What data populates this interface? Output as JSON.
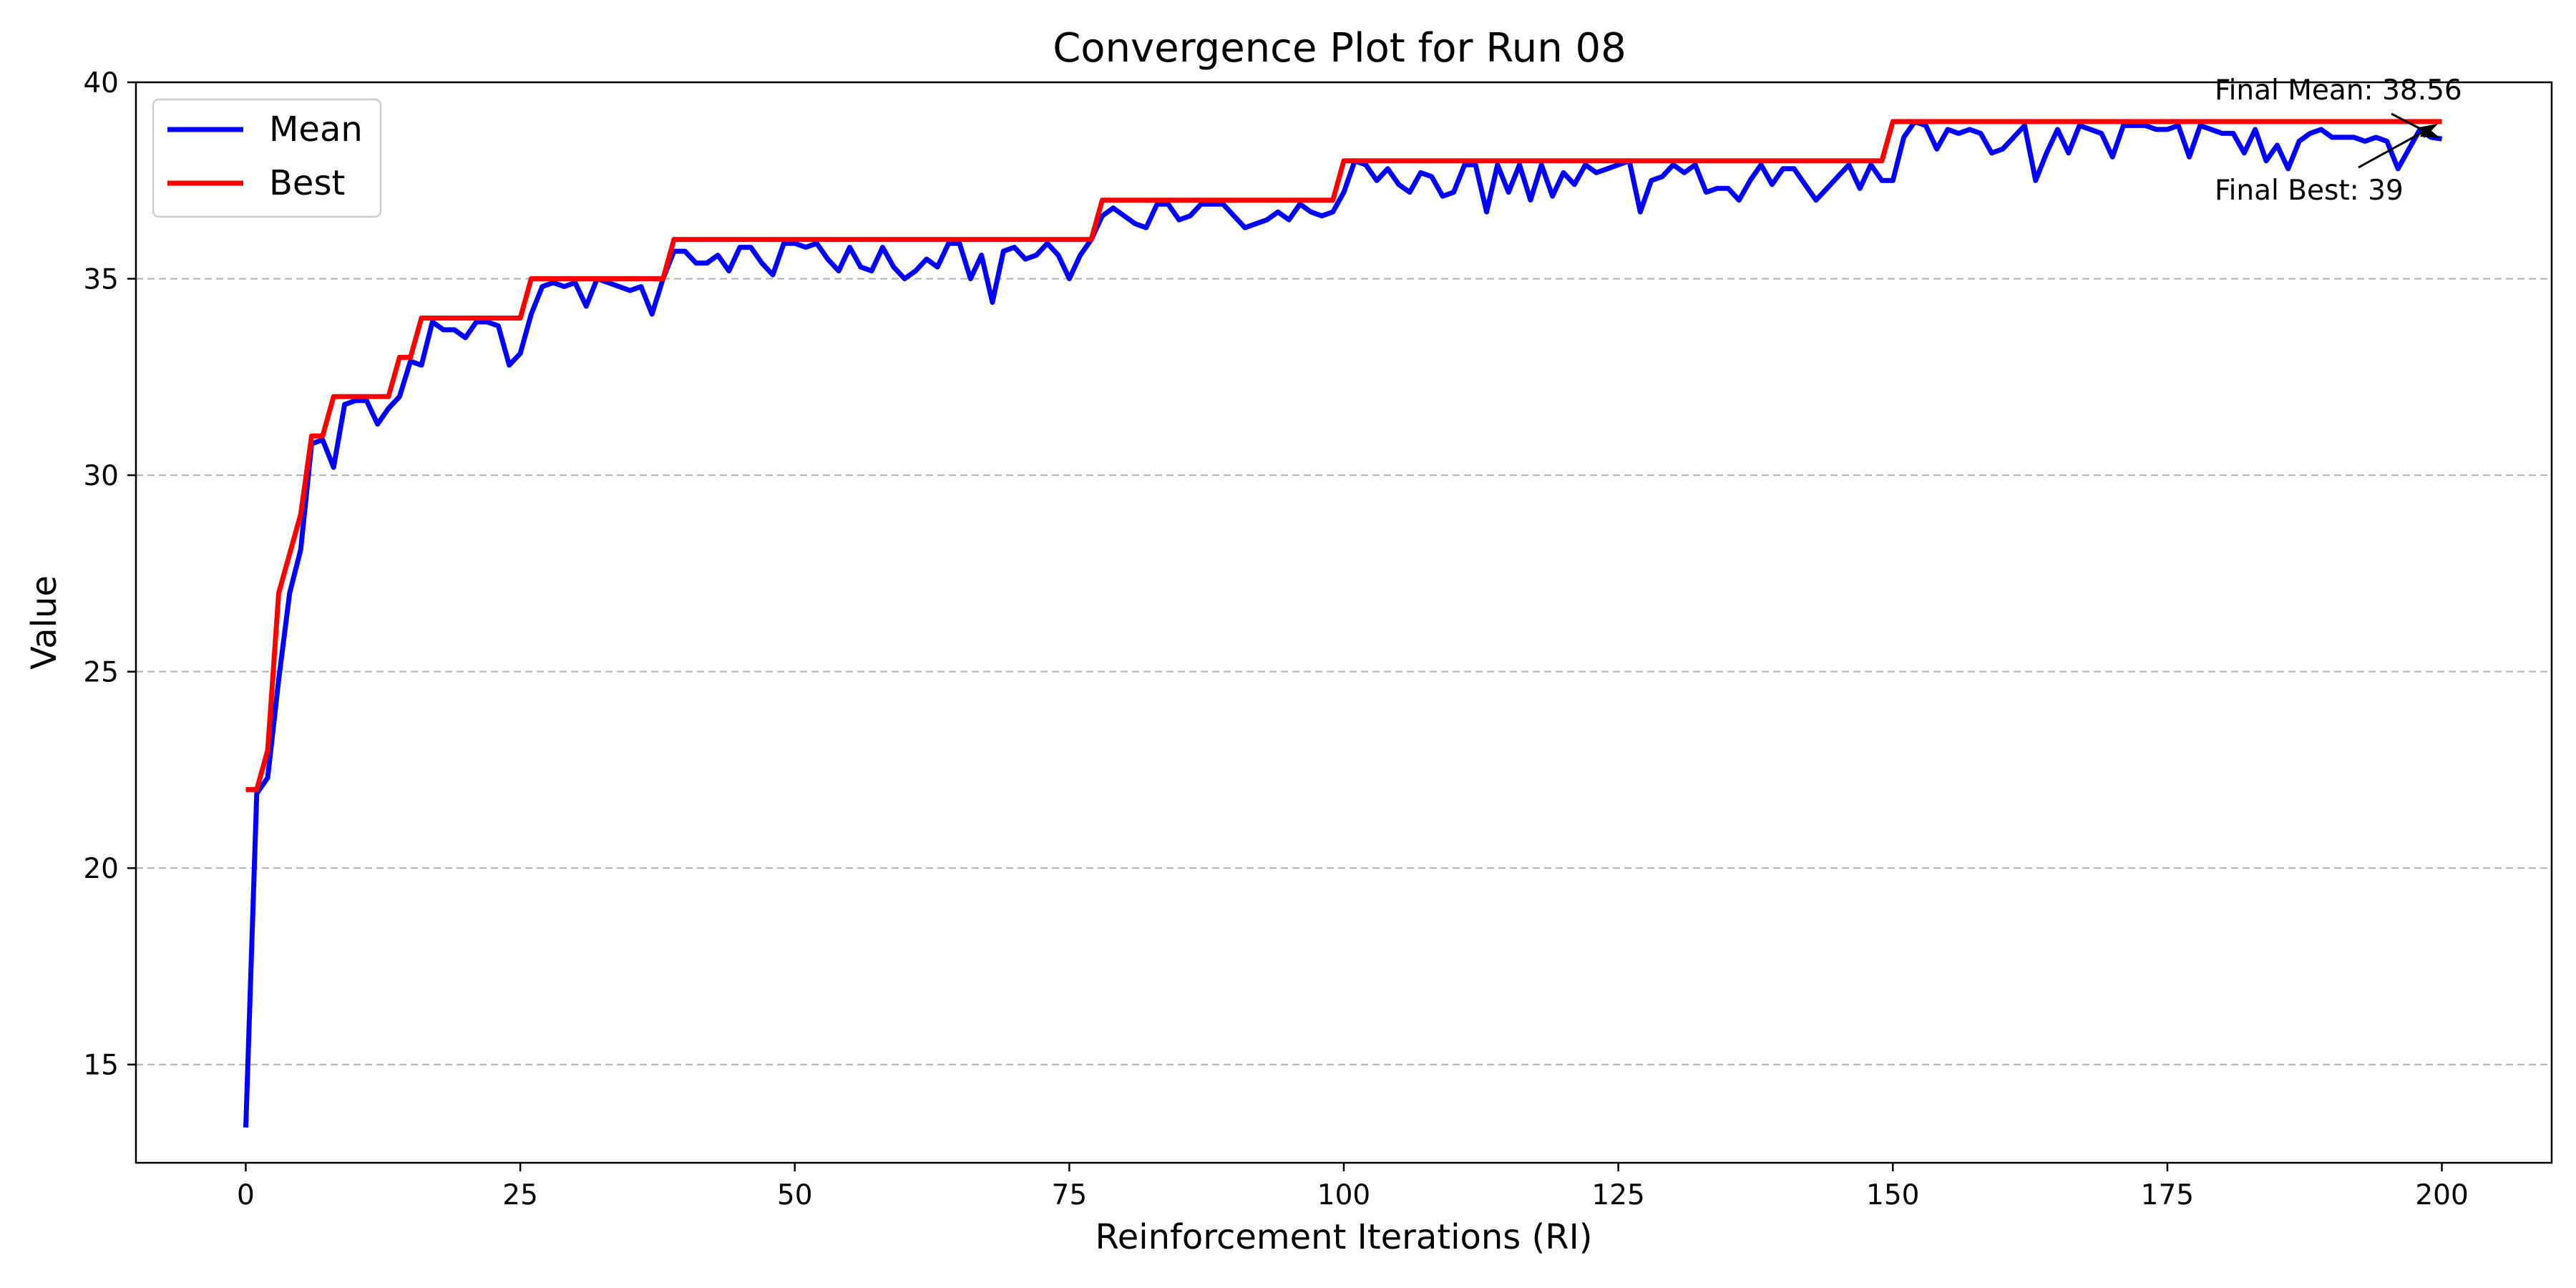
{
  "chart_data": {
    "type": "line",
    "title": "Convergence Plot for Run 08",
    "xlabel": "Reinforcement Iterations (RI)",
    "ylabel": "Value",
    "xlim": [
      -10,
      210
    ],
    "ylim": [
      12.5,
      40
    ],
    "xticks": [
      0,
      25,
      50,
      75,
      100,
      125,
      150,
      175,
      200
    ],
    "yticks": [
      15,
      20,
      25,
      30,
      35,
      40
    ],
    "grid": "y-dashed",
    "legend_position": "top-left",
    "colors": {
      "mean": "#0000ff",
      "best": "#ff0000",
      "grid": "#b0b0b0"
    },
    "annotations": [
      {
        "text": "Final Mean: 38.56",
        "target_x": 200,
        "target_y": 38.56
      },
      {
        "text": "Final Best: 39",
        "target_x": 200,
        "target_y": 39
      }
    ],
    "series": [
      {
        "name": "Mean",
        "color": "#0000ff",
        "x": [
          0,
          1,
          2,
          3,
          4,
          5,
          6,
          7,
          8,
          9,
          10,
          11,
          12,
          13,
          14,
          15,
          16,
          17,
          18,
          19,
          20,
          21,
          22,
          23,
          24,
          25,
          26,
          27,
          28,
          29,
          30,
          31,
          32,
          33,
          34,
          35,
          36,
          37,
          38,
          39,
          40,
          41,
          42,
          43,
          44,
          45,
          46,
          47,
          48,
          49,
          50,
          51,
          52,
          53,
          54,
          55,
          56,
          57,
          58,
          59,
          60,
          61,
          62,
          63,
          64,
          65,
          66,
          67,
          68,
          69,
          70,
          71,
          72,
          73,
          74,
          75,
          76,
          77,
          78,
          79,
          80,
          81,
          82,
          83,
          84,
          85,
          86,
          87,
          88,
          89,
          90,
          91,
          92,
          93,
          94,
          95,
          96,
          97,
          98,
          99,
          100,
          101,
          102,
          103,
          104,
          105,
          106,
          107,
          108,
          109,
          110,
          111,
          112,
          113,
          114,
          115,
          116,
          117,
          118,
          119,
          120,
          121,
          122,
          123,
          124,
          125,
          126,
          127,
          128,
          129,
          130,
          131,
          132,
          133,
          134,
          135,
          136,
          137,
          138,
          139,
          140,
          141,
          142,
          143,
          144,
          145,
          146,
          147,
          148,
          149,
          150,
          151,
          152,
          153,
          154,
          155,
          156,
          157,
          158,
          159,
          160,
          161,
          162,
          163,
          164,
          165,
          166,
          167,
          168,
          169,
          170,
          171,
          172,
          173,
          174,
          175,
          176,
          177,
          178,
          179,
          180,
          181,
          182,
          183,
          184,
          185,
          186,
          187,
          188,
          189,
          190,
          191,
          192,
          193,
          194,
          195,
          196,
          197,
          198,
          199,
          200
        ],
        "values": [
          13.4,
          21.9,
          22.3,
          24.8,
          27.0,
          28.1,
          30.8,
          30.9,
          30.2,
          31.8,
          31.9,
          31.9,
          31.3,
          31.7,
          32.0,
          32.9,
          32.8,
          33.9,
          33.7,
          33.7,
          33.5,
          33.9,
          33.9,
          33.8,
          32.8,
          33.1,
          34.1,
          34.8,
          34.9,
          34.8,
          34.9,
          34.3,
          35.0,
          34.9,
          34.8,
          34.7,
          34.8,
          34.1,
          35.0,
          35.7,
          35.7,
          35.4,
          35.4,
          35.6,
          35.2,
          35.8,
          35.8,
          35.4,
          35.1,
          35.9,
          35.9,
          35.8,
          35.9,
          35.5,
          35.2,
          35.8,
          35.3,
          35.2,
          35.8,
          35.3,
          35.0,
          35.2,
          35.5,
          35.3,
          35.9,
          35.9,
          35.0,
          35.6,
          34.4,
          35.7,
          35.8,
          35.5,
          35.6,
          35.9,
          35.6,
          35.0,
          35.6,
          36.0,
          36.6,
          36.8,
          36.6,
          36.4,
          36.3,
          36.9,
          36.9,
          36.5,
          36.6,
          36.9,
          36.9,
          36.9,
          36.6,
          36.3,
          36.4,
          36.5,
          36.7,
          36.5,
          36.9,
          36.7,
          36.6,
          36.7,
          37.2,
          38.0,
          37.9,
          37.5,
          37.8,
          37.4,
          37.2,
          37.7,
          37.6,
          37.1,
          37.2,
          37.9,
          37.9,
          36.7,
          37.9,
          37.2,
          37.9,
          37.0,
          37.9,
          37.1,
          37.7,
          37.4,
          37.9,
          37.7,
          37.8,
          37.9,
          38.0,
          36.7,
          37.5,
          37.6,
          37.9,
          37.7,
          37.9,
          37.2,
          37.3,
          37.3,
          37.0,
          37.5,
          37.9,
          37.4,
          37.8,
          37.8,
          37.4,
          37.0,
          37.3,
          37.6,
          37.9,
          37.3,
          37.9,
          37.5,
          37.5,
          38.6,
          39.0,
          38.9,
          38.3,
          38.8,
          38.7,
          38.8,
          38.7,
          38.2,
          38.3,
          38.6,
          38.9,
          37.5,
          38.2,
          38.8,
          38.2,
          38.9,
          38.8,
          38.7,
          38.1,
          38.9,
          38.9,
          38.9,
          38.8,
          38.8,
          38.9,
          38.1,
          38.9,
          38.8,
          38.7,
          38.7,
          38.2,
          38.8,
          38.0,
          38.4,
          37.8,
          38.5,
          38.7,
          38.8,
          38.6,
          38.6,
          38.6,
          38.5,
          38.6,
          38.5,
          37.8,
          38.3,
          38.8,
          38.6,
          38.56
        ]
      },
      {
        "name": "Best",
        "color": "#ff0000",
        "x": [
          0,
          1,
          2,
          3,
          4,
          5,
          6,
          7,
          8,
          9,
          10,
          11,
          12,
          13,
          14,
          15,
          16,
          17,
          18,
          19,
          20,
          21,
          22,
          23,
          24,
          25,
          26,
          27,
          28,
          29,
          30,
          31,
          32,
          33,
          34,
          35,
          36,
          37,
          38,
          39,
          40,
          41,
          42,
          43,
          44,
          45,
          46,
          47,
          48,
          49,
          50,
          51,
          52,
          53,
          54,
          55,
          56,
          57,
          58,
          59,
          60,
          61,
          62,
          63,
          64,
          65,
          66,
          67,
          68,
          69,
          70,
          71,
          72,
          73,
          74,
          75,
          76,
          77,
          78,
          79,
          80,
          81,
          82,
          83,
          84,
          85,
          86,
          87,
          88,
          89,
          90,
          91,
          92,
          93,
          94,
          95,
          96,
          97,
          98,
          99,
          100,
          101,
          102,
          103,
          104,
          105,
          106,
          107,
          108,
          109,
          110,
          111,
          112,
          113,
          114,
          115,
          116,
          117,
          118,
          119,
          120,
          121,
          122,
          123,
          124,
          125,
          126,
          127,
          128,
          129,
          130,
          131,
          132,
          133,
          134,
          135,
          136,
          137,
          138,
          139,
          140,
          141,
          142,
          143,
          144,
          145,
          146,
          147,
          148,
          149,
          150,
          151,
          152,
          153,
          154,
          155,
          156,
          157,
          158,
          159,
          160,
          161,
          162,
          163,
          164,
          165,
          166,
          167,
          168,
          169,
          170,
          171,
          172,
          173,
          174,
          175,
          176,
          177,
          178,
          179,
          180,
          181,
          182,
          183,
          184,
          185,
          186,
          187,
          188,
          189,
          190,
          191,
          192,
          193,
          194,
          195,
          196,
          197,
          198,
          199,
          200
        ],
        "values": [
          22,
          22,
          23,
          27,
          28,
          29,
          31,
          31,
          32,
          32,
          32,
          32,
          32,
          32,
          33,
          33,
          34,
          34,
          34,
          34,
          34,
          34,
          34,
          34,
          34,
          34,
          35,
          35,
          35,
          35,
          35,
          35,
          35,
          35,
          35,
          35,
          35,
          35,
          35,
          36,
          36,
          36,
          36,
          36,
          36,
          36,
          36,
          36,
          36,
          36,
          36,
          36,
          36,
          36,
          36,
          36,
          36,
          36,
          36,
          36,
          36,
          36,
          36,
          36,
          36,
          36,
          36,
          36,
          36,
          36,
          36,
          36,
          36,
          36,
          36,
          36,
          36,
          36,
          37,
          37,
          37,
          37,
          37,
          37,
          37,
          37,
          37,
          37,
          37,
          37,
          37,
          37,
          37,
          37,
          37,
          37,
          37,
          37,
          37,
          37,
          38,
          38,
          38,
          38,
          38,
          38,
          38,
          38,
          38,
          38,
          38,
          38,
          38,
          38,
          38,
          38,
          38,
          38,
          38,
          38,
          38,
          38,
          38,
          38,
          38,
          38,
          38,
          38,
          38,
          38,
          38,
          38,
          38,
          38,
          38,
          38,
          38,
          38,
          38,
          38,
          38,
          38,
          38,
          38,
          38,
          38,
          38,
          38,
          38,
          38,
          39,
          39,
          39,
          39,
          39,
          39,
          39,
          39,
          39,
          39,
          39,
          39,
          39,
          39,
          39,
          39,
          39,
          39,
          39,
          39,
          39,
          39,
          39,
          39,
          39,
          39,
          39,
          39,
          39,
          39,
          39,
          39,
          39,
          39,
          39,
          39,
          39,
          39,
          39,
          39,
          39,
          39,
          39,
          39,
          39,
          39,
          39,
          39,
          39,
          39,
          39
        ]
      }
    ]
  }
}
